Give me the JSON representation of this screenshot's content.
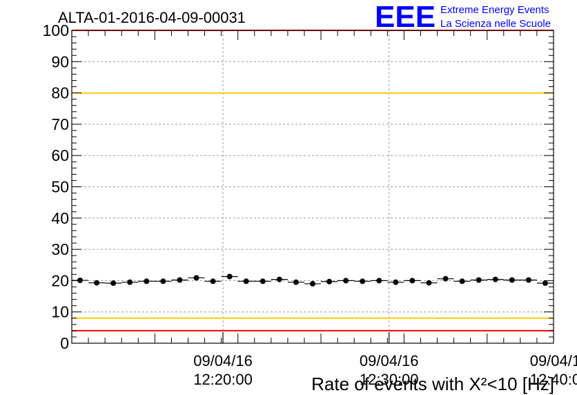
{
  "chart_data": {
    "type": "scatter",
    "title": "ALTA-01-2016-04-09-00031",
    "xlabel": "Rate of events with X²<10 [Hz]",
    "ylabel": "",
    "ylim": [
      0,
      100
    ],
    "yticks": [
      0,
      10,
      20,
      30,
      40,
      50,
      60,
      70,
      80,
      90,
      100
    ],
    "grid": true,
    "x_ticks": [
      {
        "value": 9.1,
        "date": "09/04/16",
        "time": "12:20:00"
      },
      {
        "value": 19.1,
        "date": "09/04/16",
        "time": "12:30:00"
      },
      {
        "value": 29.1,
        "date": "09/04/1",
        "time": "12:40:0"
      }
    ],
    "x_range": [
      0,
      29
    ],
    "bin_width": 1,
    "threshold_lines": [
      {
        "value": 100,
        "color": "#ff0000"
      },
      {
        "value": 80,
        "color": "#ffcc00"
      },
      {
        "value": 8,
        "color": "#ffcc00"
      },
      {
        "value": 4,
        "color": "#ff0000"
      }
    ],
    "series": [
      {
        "x": [
          0.5,
          1.5,
          2.5,
          3.5,
          4.5,
          5.5,
          6.5,
          7.5,
          8.5,
          9.5,
          10.5,
          11.5,
          12.5,
          13.5,
          14.5,
          15.5,
          16.5,
          17.5,
          18.5,
          19.5,
          20.5,
          21.5,
          22.5,
          23.5,
          24.5,
          25.5,
          26.5,
          27.5,
          28.5
        ],
        "y": [
          20.1,
          19.3,
          19.2,
          19.5,
          19.8,
          19.8,
          20.2,
          20.9,
          19.8,
          21.3,
          19.8,
          19.8,
          20.4,
          19.5,
          19.0,
          19.7,
          20.0,
          19.8,
          20.0,
          19.5,
          20.0,
          19.3,
          20.6,
          19.8,
          20.2,
          20.4,
          20.2,
          20.2,
          19.2
        ],
        "errors": [
          0.4,
          0.4,
          0.4,
          0.4,
          0.4,
          0.4,
          0.4,
          0.4,
          0.4,
          0.4,
          0.4,
          0.4,
          0.4,
          0.4,
          0.4,
          0.4,
          0.4,
          0.4,
          0.4,
          0.4,
          0.4,
          0.4,
          0.4,
          0.4,
          0.4,
          0.4,
          0.4,
          0.4,
          0.4
        ]
      }
    ]
  },
  "logo": {
    "mark": "EEE",
    "line1": "Extreme Energy Events",
    "line2": "La Scienza nelle Scuole",
    "color": "#0000ff"
  },
  "colors": {
    "grid": "#999999",
    "axis": "#000000",
    "marker": "#000000"
  }
}
